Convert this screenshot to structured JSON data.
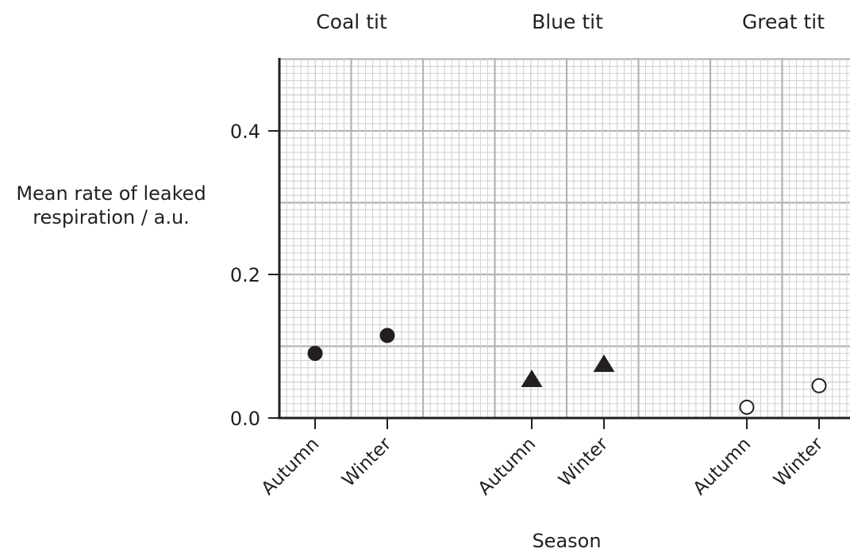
{
  "chart_data": {
    "type": "scatter",
    "title": "",
    "xlabel": "Season",
    "ylabel": [
      "Mean rate of leaked",
      "respiration / a.u."
    ],
    "ylim": [
      0,
      0.5
    ],
    "yticks": [
      0.0,
      0.2,
      0.4
    ],
    "ytick_labels": [
      "0.0",
      "0.2",
      "0.4"
    ],
    "grid": true,
    "groups": [
      "Coal tit",
      "Blue tit",
      "Great tit"
    ],
    "categories": [
      "Autumn",
      "Winter",
      "Autumn",
      "Winter",
      "Autumn",
      "Winter"
    ],
    "series": [
      {
        "group": "Coal tit",
        "marker": "filled-circle",
        "color": "#231f20",
        "x": [
          "Autumn",
          "Winter"
        ],
        "values": [
          0.09,
          0.115
        ]
      },
      {
        "group": "Blue tit",
        "marker": "filled-triangle",
        "color": "#231f20",
        "x": [
          "Autumn",
          "Winter"
        ],
        "values": [
          0.052,
          0.073
        ]
      },
      {
        "group": "Great tit",
        "marker": "open-circle",
        "color": "#231f20",
        "x": [
          "Autumn",
          "Winter"
        ],
        "values": [
          0.015,
          0.045
        ]
      }
    ]
  }
}
